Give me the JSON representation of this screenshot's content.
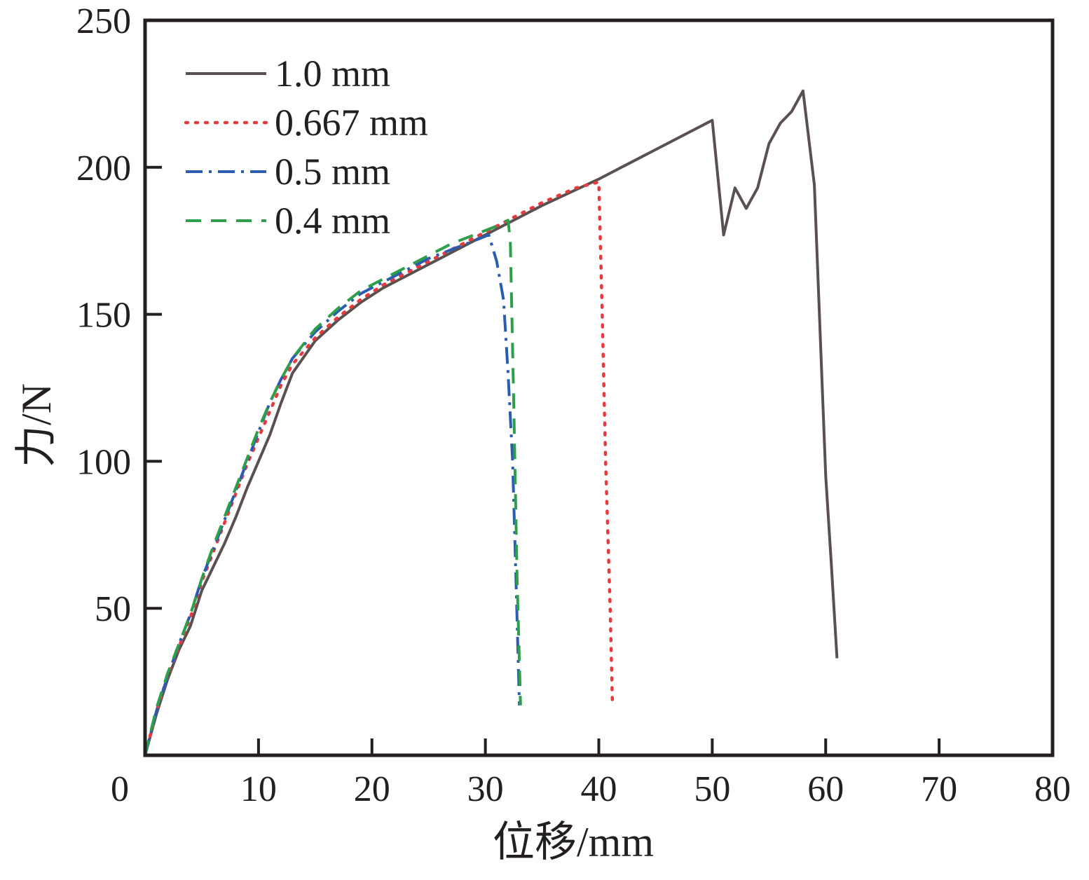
{
  "chart_data": {
    "type": "line",
    "title": "",
    "xlabel": "位移/mm",
    "ylabel": "力/N",
    "xlim": [
      0,
      80
    ],
    "ylim": [
      0,
      250
    ],
    "x_ticks": [
      0,
      10,
      20,
      30,
      40,
      50,
      60,
      70,
      80
    ],
    "y_ticks": [
      50,
      100,
      150,
      200,
      250
    ],
    "grid": false,
    "legend_position": "top-left",
    "series": [
      {
        "name": "1.0 mm",
        "color": "#5a5050",
        "dash": "solid",
        "x": [
          0,
          1,
          2,
          3,
          4,
          5,
          6,
          7,
          8,
          9,
          10,
          11,
          12,
          13,
          15,
          17,
          19,
          21,
          23,
          25,
          27,
          29,
          31,
          33,
          35,
          40,
          45,
          50,
          51,
          52,
          53,
          54,
          55,
          56,
          57,
          58,
          59,
          60,
          60.5,
          61
        ],
        "y": [
          0,
          14,
          26,
          36,
          44,
          56,
          64,
          72,
          81,
          91,
          100,
          109,
          120,
          130,
          141,
          148,
          154,
          159,
          163,
          167,
          171,
          175,
          179,
          183,
          187,
          196,
          206,
          216,
          177,
          193,
          186,
          193,
          208,
          215,
          219,
          226,
          194,
          95,
          65,
          33
        ]
      },
      {
        "name": "0.667 mm",
        "color": "#e8393e",
        "dash": "dotted",
        "x": [
          0,
          1,
          2,
          3,
          4,
          5,
          6,
          7,
          8,
          9,
          10,
          11,
          12,
          13,
          15,
          17,
          19,
          21,
          23,
          25,
          27,
          29,
          31,
          33,
          35,
          38,
          40,
          40.3,
          40.6,
          41,
          41.2
        ],
        "y": [
          0,
          15,
          27,
          37,
          47,
          59,
          69,
          79,
          89,
          99,
          108,
          117,
          126,
          133,
          142,
          149,
          155,
          160,
          164,
          168,
          172,
          176,
          180,
          184,
          188,
          193,
          195,
          150,
          100,
          50,
          18
        ]
      },
      {
        "name": "0.5 mm",
        "color": "#2a5db0",
        "dash": "dashdot",
        "x": [
          0,
          1,
          2,
          3,
          4,
          5,
          6,
          7,
          8,
          9,
          10,
          11,
          12,
          13,
          15,
          17,
          19,
          21,
          23,
          25,
          27,
          29,
          30.3,
          31,
          31.6,
          32,
          32.4,
          32.7,
          33
        ],
        "y": [
          0,
          15,
          27,
          38,
          48,
          60,
          70,
          80,
          90,
          100,
          110,
          120,
          128,
          135,
          144,
          151,
          157,
          161,
          165,
          169,
          172,
          175,
          177,
          168,
          155,
          130,
          100,
          60,
          17
        ]
      },
      {
        "name": "0.4 mm",
        "color": "#2e9e4a",
        "dash": "dashed",
        "x": [
          0,
          1,
          2,
          3,
          4,
          5,
          6,
          7,
          8,
          9,
          10,
          11,
          12,
          13,
          15,
          17,
          19,
          21,
          23,
          25,
          27,
          29,
          31,
          32,
          32.2,
          32.5,
          32.8,
          33.1
        ],
        "y": [
          0,
          16,
          28,
          38,
          48,
          60,
          71,
          81,
          91,
          101,
          111,
          120,
          128,
          135,
          145,
          152,
          158,
          162,
          166,
          170,
          174,
          177,
          180,
          182,
          175,
          120,
          60,
          17
        ]
      }
    ]
  }
}
